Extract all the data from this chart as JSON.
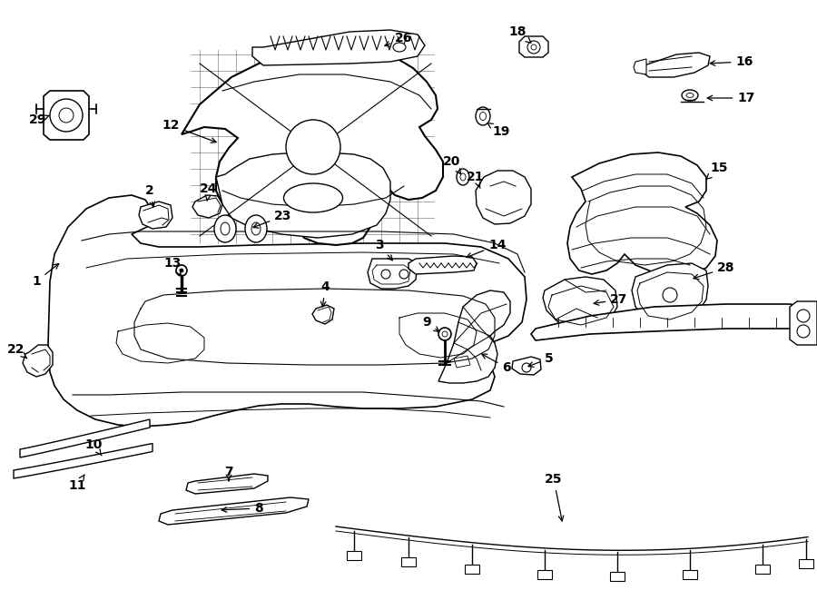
{
  "background": "#ffffff",
  "line_color": "#000000",
  "fig_w": 9.0,
  "fig_h": 6.61,
  "dpi": 100
}
